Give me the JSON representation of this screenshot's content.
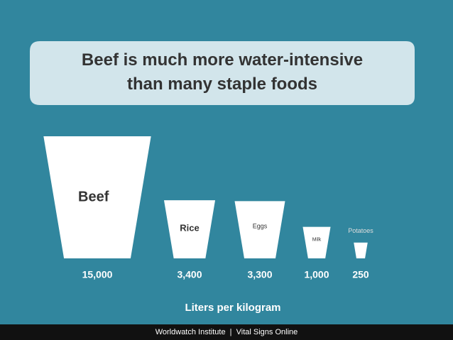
{
  "chart_data": {
    "type": "cup",
    "title": "Beef is much more water-intensive than many staple foods",
    "categories": [
      "Beef",
      "Rice",
      "Eggs",
      "Milk",
      "Potatoes"
    ],
    "values": [
      15000,
      3400,
      3300,
      1000,
      250
    ],
    "value_labels": [
      "15,000",
      "3,400",
      "3,300",
      "1,000",
      "250"
    ],
    "color": "#ffffff",
    "x_label": "Liters per kilogram",
    "source": "Worldwatch Institute  |  Vital Signs Online"
  }
}
